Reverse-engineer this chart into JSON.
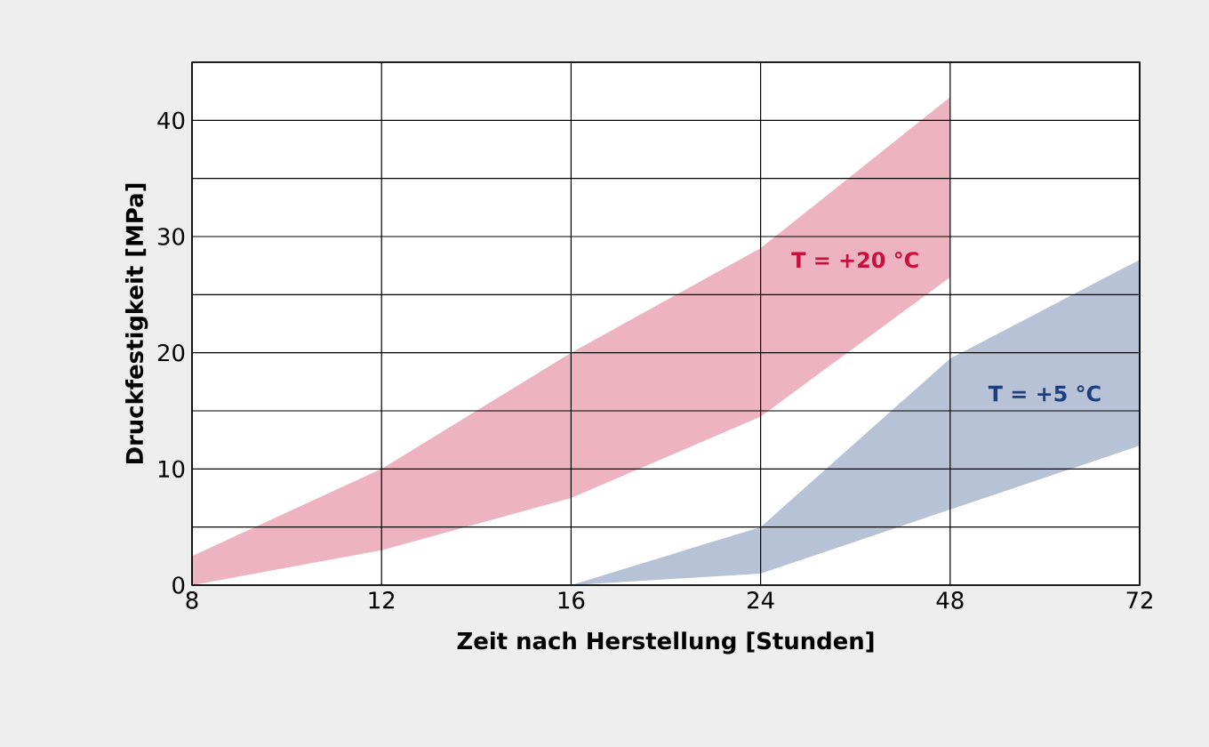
{
  "chart_data": {
    "type": "area",
    "xlabel": "Zeit nach Herstellung [Stunden]",
    "ylabel": "Druckfestigkeit [MPa]",
    "categories": [
      "8",
      "12",
      "16",
      "24",
      "48",
      "72"
    ],
    "ylim": [
      0,
      45
    ],
    "yticks": [
      0,
      {
        "value": 5,
        "label": null
      },
      10,
      {
        "value": 15,
        "label": null
      },
      20,
      {
        "value": 25,
        "label": null
      },
      30,
      {
        "value": 35,
        "label": null
      },
      40,
      {
        "value": 45,
        "label": null
      }
    ],
    "grid": true,
    "series": [
      {
        "name": "T = +20 °C",
        "color": "#c8103e",
        "values": [
          null,
          null,
          null,
          null,
          null,
          null
        ],
        "upper": [
          2.5,
          10,
          20,
          29,
          42,
          null
        ],
        "lower": [
          0,
          3,
          7.5,
          14.5,
          26.5,
          null
        ]
      },
      {
        "name": "T = +5 °C",
        "color": "#1e3f7e",
        "values": [
          null,
          null,
          null,
          null,
          null,
          null
        ],
        "upper": [
          null,
          null,
          0,
          5,
          19.5,
          28
        ],
        "lower": [
          null,
          null,
          0,
          1,
          6.5,
          12
        ]
      }
    ]
  }
}
